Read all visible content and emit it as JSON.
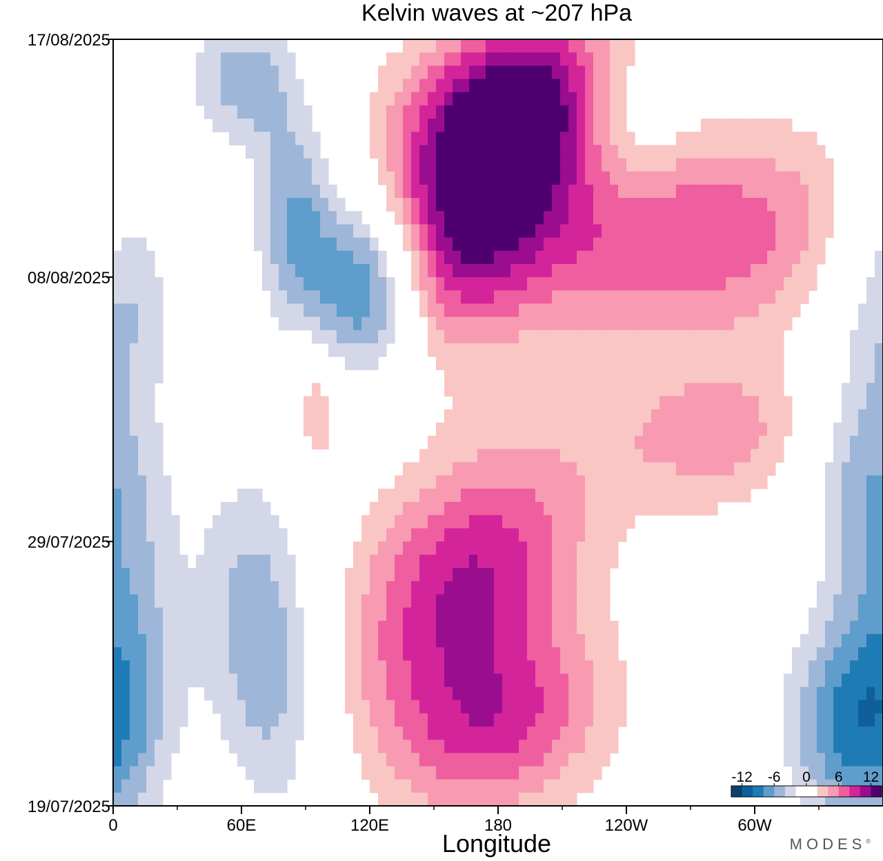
{
  "chart_data": {
    "type": "heatmap",
    "title": "Kelvin waves at ~207 hPa",
    "xlabel": "Longitude",
    "ylabel": "",
    "x_ticks": [
      "0",
      "60E",
      "120E",
      "180",
      "120W",
      "60W"
    ],
    "y_ticks": [
      "17/08/2025",
      "08/08/2025",
      "29/07/2025",
      "19/07/2025"
    ],
    "x_range_deg": [
      0,
      360
    ],
    "y_range_days": [
      0,
      29
    ],
    "colorbar": {
      "tick_labels": [
        "-12",
        "-6",
        "0",
        "6",
        "12"
      ],
      "levels": [
        -14,
        -12,
        -10,
        -8,
        -6,
        -4,
        -2,
        2,
        4,
        6,
        8,
        10,
        12,
        14
      ],
      "colors": [
        "#0b3f6b",
        "#0f5f9a",
        "#1f7bb5",
        "#5e9dcc",
        "#9eb6d8",
        "#d3d7e8",
        "#ffffff",
        "#ffffff",
        "#f9c6c4",
        "#f79ab2",
        "#ef5e9f",
        "#d4249a",
        "#9b0d8f",
        "#4f0070"
      ]
    },
    "features": [
      {
        "kind": "positive",
        "lon": 170,
        "day": 6.5,
        "amp": 11,
        "sx": 30,
        "sy": 3.5,
        "tilt": 4
      },
      {
        "kind": "positive",
        "lon": 185,
        "day": 2.5,
        "amp": 11,
        "sx": 35,
        "sy": 2.5,
        "tilt": 4
      },
      {
        "kind": "positive",
        "lon": 265,
        "day": 7.5,
        "amp": 8,
        "sx": 60,
        "sy": 2.8,
        "tilt": 3
      },
      {
        "kind": "positive",
        "lon": 165,
        "day": 20.5,
        "amp": 10,
        "sx": 35,
        "sy": 3.5,
        "tilt": 4
      },
      {
        "kind": "positive",
        "lon": 180,
        "day": 26,
        "amp": 8,
        "sx": 35,
        "sy": 2.5,
        "tilt": 3
      },
      {
        "kind": "positive",
        "lon": 285,
        "day": 15,
        "amp": 5,
        "sx": 40,
        "sy": 2,
        "tilt": 2
      },
      {
        "kind": "positive",
        "lon": 95,
        "day": 14,
        "amp": 5,
        "sx": 7,
        "sy": 1.5,
        "tilt": 0
      },
      {
        "kind": "negative",
        "lon": 120,
        "day": 9.5,
        "amp": -12,
        "sx": 18,
        "sy": 2.5,
        "tilt": 0
      },
      {
        "kind": "negative",
        "lon": 85,
        "day": 7,
        "amp": -8,
        "sx": 15,
        "sy": 3,
        "tilt": 0
      },
      {
        "kind": "negative",
        "lon": 60,
        "day": 1.5,
        "amp": -7,
        "sx": 20,
        "sy": 2,
        "tilt": 0
      },
      {
        "kind": "negative",
        "lon": 70,
        "day": 23,
        "amp": -8,
        "sx": 20,
        "sy": 5,
        "tilt": -1
      },
      {
        "kind": "negative",
        "lon": 5,
        "day": 21,
        "amp": -6,
        "sx": 20,
        "sy": 6,
        "tilt": 0
      },
      {
        "kind": "negative",
        "lon": 345,
        "day": 26,
        "amp": -9,
        "sx": 25,
        "sy": 3,
        "tilt": 0
      },
      {
        "kind": "negative",
        "lon": 345,
        "day": 16,
        "amp": -5,
        "sx": 20,
        "sy": 3,
        "tilt": 0
      },
      {
        "kind": "negative",
        "lon": 5,
        "day": 9,
        "amp": -6,
        "sx": 20,
        "sy": 3,
        "tilt": 0
      },
      {
        "kind": "negative",
        "lon": 240,
        "day": 3,
        "amp": -4,
        "sx": 20,
        "sy": 2,
        "tilt": 0
      }
    ]
  },
  "brand": "MODES"
}
